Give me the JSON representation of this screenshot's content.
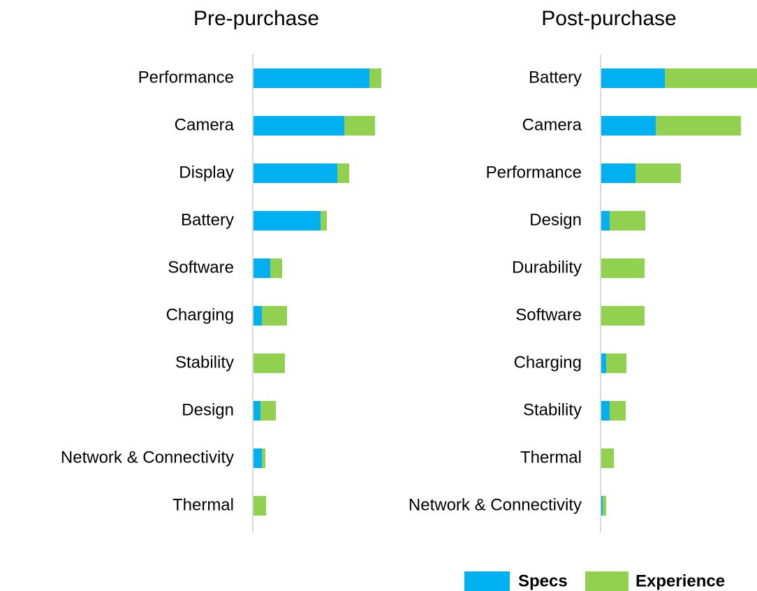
{
  "chart_data": [
    {
      "type": "stacked-bar-horizontal",
      "title": "Pre-purchase",
      "categories": [
        "Performance",
        "Camera",
        "Display",
        "Battery",
        "Software",
        "Charging",
        "Stability",
        "Design",
        "Network & Connectivity",
        "Thermal"
      ],
      "series": [
        {
          "name": "Specs",
          "color": "#00b0f0",
          "values": [
            166,
            130,
            120,
            96,
            24,
            12,
            0,
            10,
            12,
            0
          ]
        },
        {
          "name": "Experience",
          "color": "#92d050",
          "values": [
            17,
            44,
            17,
            9,
            17,
            36,
            45,
            22,
            5,
            18
          ]
        }
      ],
      "xlim": [
        0,
        223
      ]
    },
    {
      "type": "stacked-bar-horizontal",
      "title": "Post-purchase",
      "categories": [
        "Battery",
        "Camera",
        "Performance",
        "Design",
        "Durability",
        "Software",
        "Charging",
        "Stability",
        "Thermal",
        "Network & Connectivity"
      ],
      "series": [
        {
          "name": "Specs",
          "color": "#00b0f0",
          "values": [
            91,
            78,
            49,
            12,
            0,
            0,
            7,
            12,
            0,
            2
          ]
        },
        {
          "name": "Experience",
          "color": "#92d050",
          "values": [
            132,
            122,
            65,
            51,
            62,
            62,
            29,
            23,
            18,
            5
          ]
        }
      ],
      "xlim": [
        0,
        223
      ]
    }
  ]
}
